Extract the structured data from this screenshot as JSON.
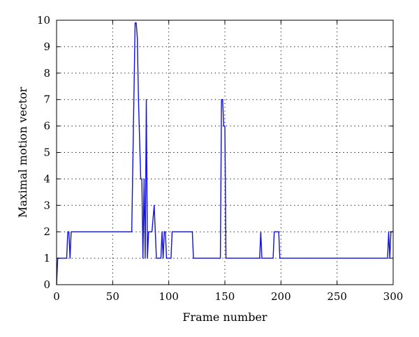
{
  "chart_data": {
    "type": "line",
    "xlabel": "Frame number",
    "ylabel": "Maximal motion vector",
    "xlim": [
      0,
      300
    ],
    "ylim": [
      0,
      10
    ],
    "xticks": [
      0,
      50,
      100,
      150,
      200,
      250,
      300
    ],
    "yticks": [
      0,
      1,
      2,
      3,
      4,
      5,
      6,
      7,
      8,
      9,
      10
    ],
    "grid": true,
    "legend": "none",
    "colors": {
      "series": "#1010e0",
      "axes": "#000000",
      "background": "#ffffff"
    },
    "series": [
      {
        "points": [
          [
            0,
            0
          ],
          [
            1,
            1
          ],
          [
            9,
            1
          ],
          [
            10,
            2
          ],
          [
            11,
            2
          ],
          [
            12,
            1
          ],
          [
            13,
            2
          ],
          [
            67,
            2
          ],
          [
            70,
            9.9
          ],
          [
            71,
            9.9
          ],
          [
            72,
            9.3
          ],
          [
            73,
            7
          ],
          [
            75,
            4
          ],
          [
            76,
            4
          ],
          [
            77,
            1
          ],
          [
            78,
            4
          ],
          [
            79,
            1
          ],
          [
            80,
            7
          ],
          [
            81,
            1
          ],
          [
            82,
            2
          ],
          [
            85,
            2
          ],
          [
            87,
            3
          ],
          [
            89,
            1
          ],
          [
            93,
            1
          ],
          [
            94,
            2
          ],
          [
            95,
            1
          ],
          [
            96,
            2
          ],
          [
            97,
            2
          ],
          [
            98,
            1
          ],
          [
            102,
            1
          ],
          [
            103,
            2
          ],
          [
            121,
            2
          ],
          [
            122,
            1
          ],
          [
            146,
            1
          ],
          [
            147,
            7
          ],
          [
            148,
            7
          ],
          [
            149,
            6
          ],
          [
            150,
            6
          ],
          [
            151,
            1
          ],
          [
            181,
            1
          ],
          [
            182,
            2
          ],
          [
            183,
            1
          ],
          [
            193,
            1
          ],
          [
            194,
            2
          ],
          [
            198,
            2
          ],
          [
            199,
            1
          ],
          [
            295,
            1
          ],
          [
            296,
            2
          ],
          [
            297,
            1
          ],
          [
            298,
            2
          ],
          [
            300,
            2
          ]
        ]
      }
    ]
  }
}
